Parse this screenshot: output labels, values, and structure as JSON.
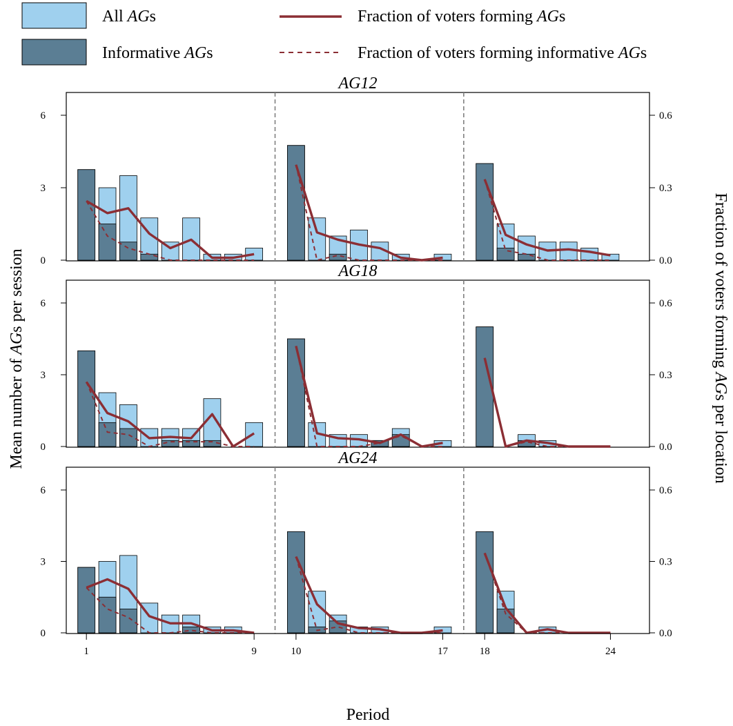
{
  "colors": {
    "all_ags": "#9fd0ee",
    "informative_ags": "#5b7e94",
    "fraction_line": "#8b2e34",
    "divider": "#808080"
  },
  "legend": {
    "all": {
      "pre": "All ",
      "ital": "AG",
      "post": "s"
    },
    "informative": {
      "pre": "Informative ",
      "ital": "AG",
      "post": "s"
    },
    "frac": {
      "pre": "Fraction of voters forming ",
      "ital": "AG",
      "post": "s"
    },
    "frac_inf": {
      "pre": "Fraction of voters forming informative ",
      "ital": "AG",
      "post": "s"
    }
  },
  "axes": {
    "xlabel": "Period",
    "ylabel_left": {
      "pre": "Mean number of ",
      "ital": "AG",
      "post": "s per session"
    },
    "ylabel_right": {
      "pre": "Fraction of voters forming ",
      "ital": "AG",
      "post": "s per location"
    },
    "x_ticks": [
      1,
      9,
      10,
      17,
      18,
      24
    ],
    "y_left_ticks": [
      "0",
      "3",
      "6"
    ],
    "y_right_ticks": [
      "0.0",
      "0.3",
      "0.6"
    ],
    "y_left_range": [
      0,
      6
    ],
    "y_right_range": [
      0,
      0.6
    ],
    "period_dividers": [
      9.5,
      17.5
    ]
  },
  "chart_data": [
    {
      "type": "bar",
      "title": "AG12",
      "x": [
        1,
        2,
        3,
        4,
        5,
        6,
        7,
        8,
        9,
        10,
        11,
        12,
        13,
        14,
        15,
        16,
        17,
        18,
        19,
        20,
        21,
        22,
        23,
        24
      ],
      "series": [
        {
          "name": "All AGs",
          "axis": "left",
          "values": [
            3.75,
            3.0,
            3.5,
            1.75,
            0.75,
            1.75,
            0.25,
            0.25,
            0.5,
            4.75,
            1.75,
            1.0,
            1.25,
            0.75,
            0.25,
            0,
            0.25,
            4.0,
            1.5,
            1.0,
            0.75,
            0.75,
            0.5,
            0.25
          ]
        },
        {
          "name": "Informative AGs",
          "axis": "left",
          "values": [
            3.75,
            1.5,
            0.75,
            0.25,
            0,
            0,
            0,
            0,
            0,
            4.75,
            0,
            0.25,
            0,
            0,
            0,
            0,
            0,
            4.0,
            0.5,
            0.25,
            0,
            0,
            0,
            0
          ]
        },
        {
          "name": "Fraction of voters forming AGs",
          "axis": "right",
          "values": [
            0.245,
            0.195,
            0.215,
            0.11,
            0.05,
            0.085,
            0.01,
            0.01,
            0.025,
            0.395,
            0.115,
            0.085,
            0.065,
            0.05,
            0.01,
            0,
            0.01,
            0.335,
            0.105,
            0.065,
            0.04,
            0.045,
            0.035,
            0.02
          ]
        },
        {
          "name": "Fraction of voters forming informative AGs",
          "axis": "right",
          "values": [
            0.245,
            0.1,
            0.05,
            0.025,
            0,
            0,
            0,
            0,
            0,
            0.395,
            0,
            0.02,
            0,
            0,
            0,
            0,
            0,
            0.335,
            0.04,
            0.025,
            0,
            0,
            0,
            0
          ]
        }
      ]
    },
    {
      "type": "bar",
      "title": "AG18",
      "x": [
        1,
        2,
        3,
        4,
        5,
        6,
        7,
        8,
        9,
        10,
        11,
        12,
        13,
        14,
        15,
        16,
        17,
        18,
        19,
        20,
        21,
        22,
        23,
        24
      ],
      "series": [
        {
          "name": "All AGs",
          "axis": "left",
          "values": [
            4.0,
            2.25,
            1.75,
            0.75,
            0.75,
            0.75,
            2.0,
            0,
            1.0,
            4.5,
            1.0,
            0.5,
            0.5,
            0.25,
            0.75,
            0,
            0.25,
            5.0,
            0,
            0.5,
            0.25,
            0,
            0,
            0
          ]
        },
        {
          "name": "Informative AGs",
          "axis": "left",
          "values": [
            4.0,
            1.0,
            0.75,
            0,
            0.25,
            0.25,
            0.25,
            0,
            0,
            4.5,
            0,
            0,
            0,
            0.25,
            0.5,
            0,
            0,
            5.0,
            0,
            0.25,
            0,
            0,
            0,
            0
          ]
        },
        {
          "name": "Fraction of voters forming AGs",
          "axis": "right",
          "values": [
            0.27,
            0.14,
            0.105,
            0.035,
            0.04,
            0.035,
            0.135,
            0,
            0.055,
            0.42,
            0.055,
            0.035,
            0.03,
            0.015,
            0.05,
            0,
            0.015,
            0.37,
            0,
            0.025,
            0.015,
            0,
            0,
            0
          ]
        },
        {
          "name": "Fraction of voters forming informative AGs",
          "axis": "right",
          "values": [
            0.27,
            0.06,
            0.05,
            0,
            0.02,
            0.02,
            0.02,
            0,
            0,
            0.42,
            0,
            0,
            0,
            0.015,
            0.045,
            0,
            0,
            0.37,
            0,
            0.02,
            0,
            0,
            0,
            0
          ]
        }
      ]
    },
    {
      "type": "bar",
      "title": "AG24",
      "x": [
        1,
        2,
        3,
        4,
        5,
        6,
        7,
        8,
        9,
        10,
        11,
        12,
        13,
        14,
        15,
        16,
        17,
        18,
        19,
        20,
        21,
        22,
        23,
        24
      ],
      "series": [
        {
          "name": "All AGs",
          "axis": "left",
          "values": [
            2.75,
            3.0,
            3.25,
            1.25,
            0.75,
            0.75,
            0.25,
            0.25,
            0,
            4.25,
            1.75,
            0.75,
            0.25,
            0.25,
            0,
            0,
            0.25,
            4.25,
            1.75,
            0,
            0.25,
            0,
            0,
            0
          ]
        },
        {
          "name": "Informative AGs",
          "axis": "left",
          "values": [
            2.75,
            1.5,
            1.0,
            0,
            0,
            0.25,
            0,
            0,
            0,
            4.25,
            0.25,
            0.5,
            0,
            0,
            0,
            0,
            0,
            4.25,
            1.0,
            0,
            0,
            0,
            0,
            0
          ]
        },
        {
          "name": "Fraction of voters forming AGs",
          "axis": "right",
          "values": [
            0.19,
            0.225,
            0.185,
            0.07,
            0.04,
            0.04,
            0.01,
            0.01,
            0,
            0.32,
            0.12,
            0.04,
            0.02,
            0.015,
            0,
            0,
            0.01,
            0.335,
            0.105,
            0,
            0.015,
            0,
            0,
            0
          ]
        },
        {
          "name": "Fraction of voters forming informative AGs",
          "axis": "right",
          "values": [
            0.19,
            0.1,
            0.065,
            0,
            0,
            0.01,
            0,
            0,
            0,
            0.32,
            0.01,
            0.025,
            0,
            0,
            0,
            0,
            0,
            0.335,
            0.08,
            0,
            0,
            0,
            0,
            0
          ]
        }
      ]
    }
  ]
}
